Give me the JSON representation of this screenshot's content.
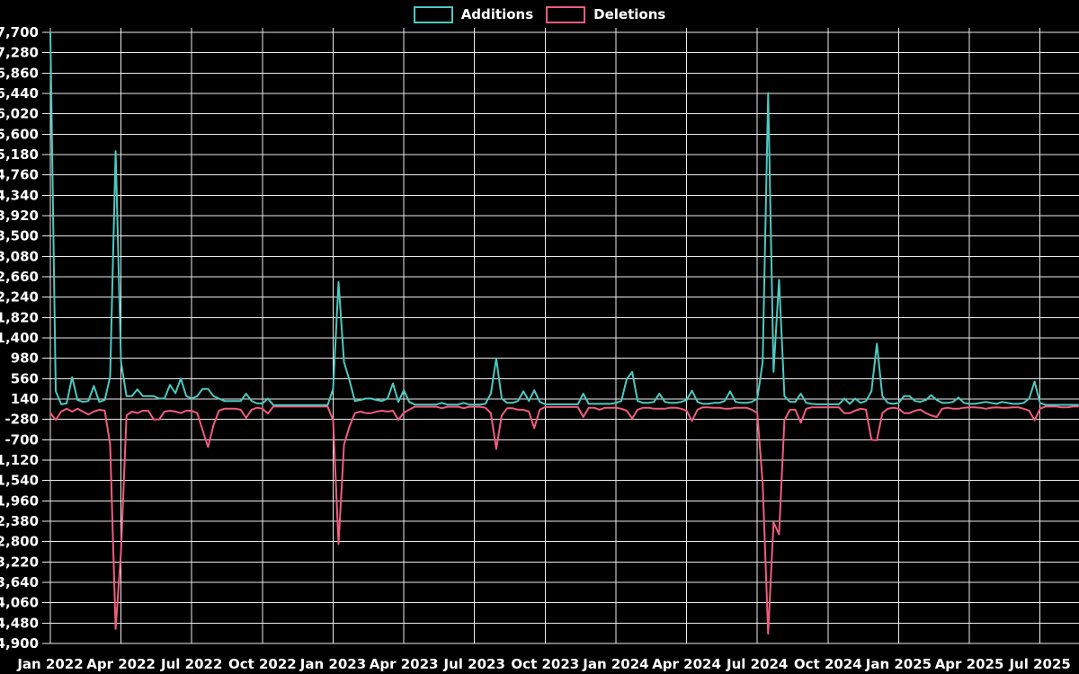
{
  "legend": {
    "items": [
      {
        "label": "Additions",
        "color": "#4dc9c0"
      },
      {
        "label": "Deletions",
        "color": "#f25c7f"
      }
    ]
  },
  "chart_data": {
    "type": "line",
    "title": "",
    "xlabel": "",
    "ylabel": "",
    "x_unit": "week",
    "x_range_note": "weekly points from Jan 2022 through Aug 2025",
    "x_tick_labels": [
      "Jan 2022",
      "Apr 2022",
      "Jul 2022",
      "Oct 2022",
      "Jan 2023",
      "Apr 2023",
      "Jul 2023",
      "Oct 2023",
      "Jan 2024",
      "Apr 2024",
      "Jul 2024",
      "Oct 2024",
      "Jan 2025",
      "Apr 2025",
      "Jul 2025"
    ],
    "x_tick_every_weeks": 13,
    "ylim": [
      -4900,
      7700
    ],
    "y_step": 420,
    "grid": true,
    "legend_position": "top-center",
    "background_color": "#000000",
    "grid_color": "#ececec",
    "text_color": "#ffffff",
    "series": [
      {
        "name": "Additions",
        "color": "#4dc9c0",
        "values": [
          7700,
          300,
          30,
          50,
          590,
          120,
          80,
          100,
          410,
          80,
          120,
          600,
          5250,
          900,
          200,
          200,
          340,
          200,
          200,
          200,
          150,
          150,
          430,
          260,
          560,
          200,
          150,
          200,
          350,
          350,
          200,
          150,
          100,
          100,
          100,
          100,
          250,
          100,
          50,
          50,
          150,
          15,
          15,
          15,
          15,
          15,
          15,
          15,
          15,
          15,
          15,
          15,
          350,
          2550,
          900,
          530,
          100,
          120,
          150,
          150,
          120,
          100,
          150,
          460,
          80,
          320,
          80,
          25,
          25,
          25,
          25,
          25,
          60,
          25,
          25,
          25,
          60,
          25,
          25,
          25,
          40,
          250,
          980,
          150,
          60,
          60,
          100,
          300,
          100,
          320,
          80,
          30,
          30,
          30,
          30,
          30,
          30,
          30,
          250,
          40,
          40,
          40,
          40,
          40,
          60,
          100,
          550,
          700,
          100,
          60,
          60,
          80,
          250,
          80,
          60,
          60,
          80,
          120,
          310,
          80,
          40,
          40,
          60,
          60,
          100,
          300,
          80,
          60,
          60,
          80,
          150,
          900,
          6450,
          700,
          2600,
          200,
          80,
          80,
          250,
          60,
          40,
          30,
          30,
          30,
          30,
          30,
          150,
          40,
          150,
          60,
          100,
          300,
          1280,
          200,
          60,
          40,
          60,
          200,
          200,
          100,
          80,
          120,
          220,
          120,
          60,
          60,
          80,
          170,
          60,
          40,
          40,
          60,
          80,
          60,
          40,
          80,
          60,
          40,
          40,
          60,
          150,
          500,
          60,
          20,
          20,
          20,
          20,
          20,
          20,
          20
        ]
      },
      {
        "name": "Deletions",
        "color": "#f25c7f",
        "values": [
          -150,
          -290,
          -120,
          -60,
          -120,
          -60,
          -120,
          -180,
          -120,
          -80,
          -100,
          -800,
          -4600,
          -3000,
          -200,
          -120,
          -150,
          -100,
          -100,
          -280,
          -280,
          -120,
          -100,
          -120,
          -150,
          -100,
          -100,
          -150,
          -500,
          -850,
          -400,
          -100,
          -60,
          -60,
          -60,
          -80,
          -250,
          -80,
          -40,
          -60,
          -160,
          -15,
          -15,
          -15,
          -15,
          -15,
          -15,
          -15,
          -15,
          -15,
          -15,
          -15,
          -300,
          -2850,
          -800,
          -430,
          -150,
          -120,
          -150,
          -150,
          -120,
          -100,
          -120,
          -100,
          -290,
          -140,
          -80,
          -20,
          -20,
          -20,
          -20,
          -20,
          -50,
          -20,
          -20,
          -20,
          -50,
          -20,
          -20,
          -20,
          -40,
          -150,
          -890,
          -200,
          -50,
          -50,
          -80,
          -80,
          -120,
          -460,
          -80,
          -25,
          -25,
          -25,
          -25,
          -25,
          -25,
          -25,
          -230,
          -40,
          -40,
          -80,
          -40,
          -40,
          -40,
          -60,
          -100,
          -260,
          -80,
          -40,
          -40,
          -60,
          -60,
          -60,
          -40,
          -40,
          -60,
          -100,
          -310,
          -80,
          -30,
          -30,
          -40,
          -40,
          -60,
          -60,
          -40,
          -40,
          -40,
          -80,
          -150,
          -1600,
          -4700,
          -2400,
          -2650,
          -300,
          -80,
          -80,
          -350,
          -60,
          -30,
          -30,
          -30,
          -30,
          -30,
          -30,
          -150,
          -150,
          -100,
          -60,
          -80,
          -700,
          -710,
          -150,
          -60,
          -40,
          -60,
          -150,
          -150,
          -100,
          -80,
          -150,
          -200,
          -230,
          -60,
          -40,
          -60,
          -60,
          -40,
          -30,
          -30,
          -40,
          -60,
          -40,
          -30,
          -40,
          -40,
          -30,
          -30,
          -60,
          -100,
          -300,
          -60,
          -15,
          -15,
          -15,
          -30,
          -30,
          -15,
          -15
        ]
      }
    ]
  }
}
